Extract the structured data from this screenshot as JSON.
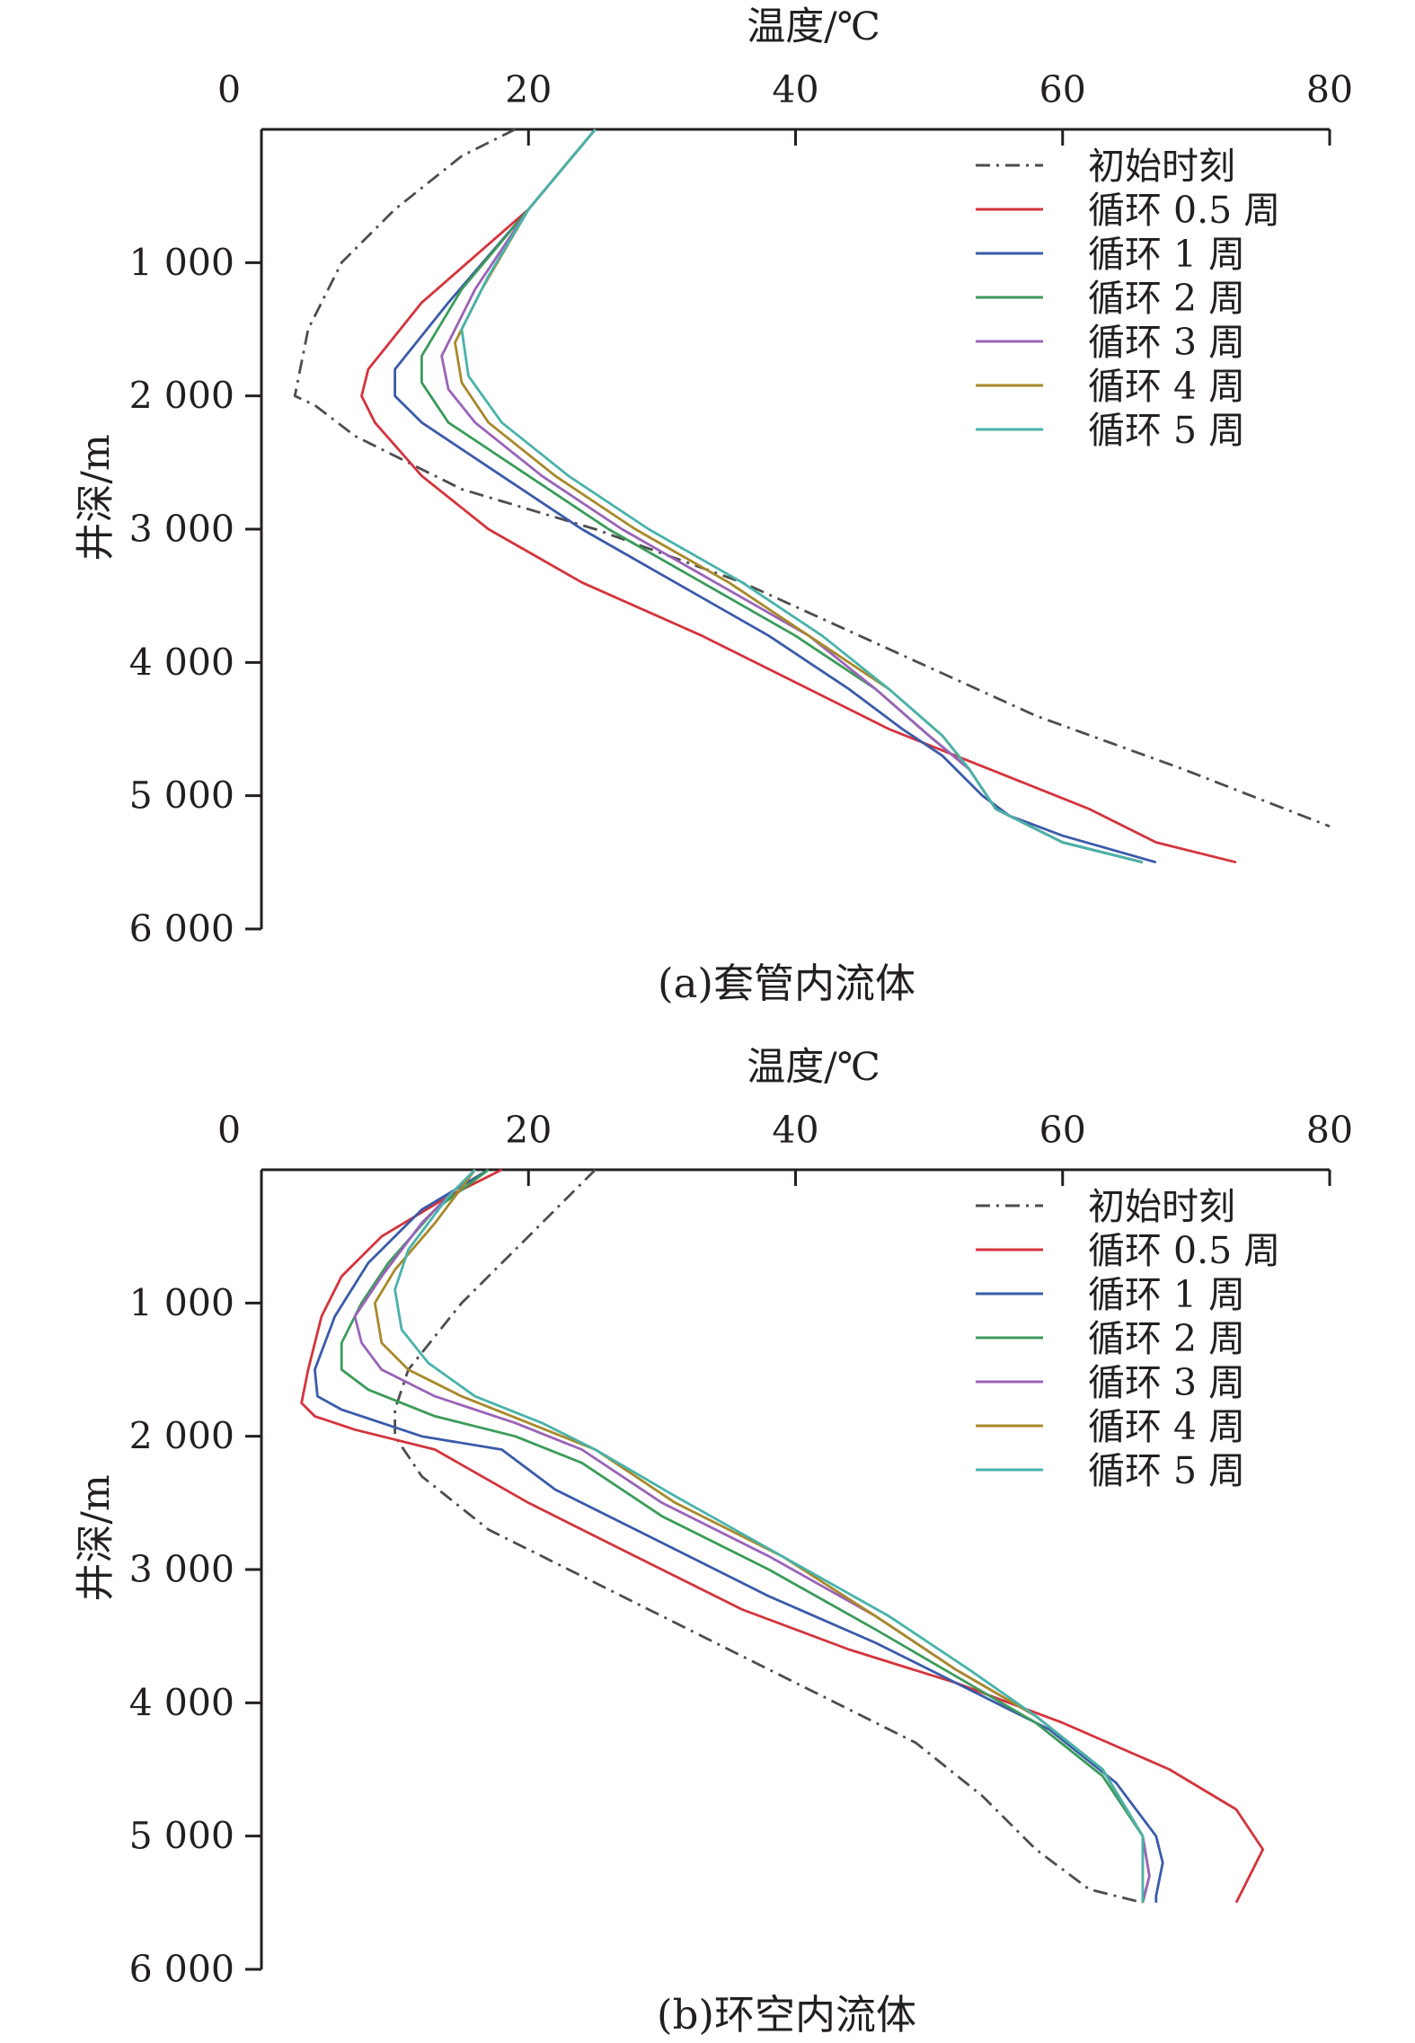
{
  "chart_data": [
    {
      "type": "line",
      "caption": "(a)套管内流体",
      "xlabel": "温度/℃",
      "ylabel": "井深/m",
      "xlim": [
        0,
        80
      ],
      "ylim": [
        6000,
        0
      ],
      "x_ticks": [
        "0",
        "20",
        "40",
        "60",
        "80"
      ],
      "y_ticks": [
        "1 000",
        "2 000",
        "3 000",
        "4 000",
        "5 000",
        "6 000"
      ],
      "legend_position": "top-right",
      "series": [
        {
          "name": "初始时刻",
          "color": "#4d4d4d",
          "dash": "dashdot",
          "points": [
            [
              19,
              0
            ],
            [
              15,
              200
            ],
            [
              10,
              600
            ],
            [
              6,
              1000
            ],
            [
              3.5,
              1500
            ],
            [
              2.5,
              2000
            ],
            [
              4,
              2070
            ],
            [
              7,
              2300
            ],
            [
              15,
              2700
            ],
            [
              25,
              3000
            ],
            [
              36,
              3400
            ],
            [
              47,
              3900
            ],
            [
              58,
              4400
            ],
            [
              69,
              4800
            ],
            [
              80,
              5230
            ]
          ]
        },
        {
          "name": "循环 0.5 周",
          "color": "#d4343c",
          "dash": "solid",
          "points": [
            [
              25,
              0
            ],
            [
              20,
              600
            ],
            [
              12,
              1300
            ],
            [
              8,
              1800
            ],
            [
              7.5,
              2000
            ],
            [
              8.5,
              2200
            ],
            [
              12,
              2600
            ],
            [
              17,
              3000
            ],
            [
              24,
              3400
            ],
            [
              33,
              3800
            ],
            [
              41,
              4200
            ],
            [
              47,
              4500
            ],
            [
              52,
              4700
            ],
            [
              57,
              4900
            ],
            [
              62,
              5100
            ],
            [
              67,
              5350
            ],
            [
              73,
              5500
            ]
          ]
        },
        {
          "name": "循环 1 周",
          "color": "#3a5ba9",
          "dash": "solid",
          "points": [
            [
              25,
              0
            ],
            [
              20,
              600
            ],
            [
              14,
              1300
            ],
            [
              10,
              1800
            ],
            [
              10,
              2000
            ],
            [
              12,
              2200
            ],
            [
              18,
              2600
            ],
            [
              24,
              3000
            ],
            [
              31,
              3400
            ],
            [
              38,
              3800
            ],
            [
              44,
              4200
            ],
            [
              48,
              4500
            ],
            [
              51,
              4700
            ],
            [
              54,
              5000
            ],
            [
              56,
              5150
            ],
            [
              60,
              5300
            ],
            [
              67,
              5500
            ]
          ]
        },
        {
          "name": "循环 2 周",
          "color": "#3b9b5a",
          "dash": "solid",
          "points": [
            [
              25,
              0
            ],
            [
              20,
              600
            ],
            [
              15,
              1200
            ],
            [
              12,
              1700
            ],
            [
              12,
              1900
            ],
            [
              14,
              2200
            ],
            [
              20,
              2600
            ],
            [
              26,
              3000
            ],
            [
              33,
              3400
            ],
            [
              40,
              3800
            ],
            [
              46,
              4200
            ],
            [
              50,
              4550
            ],
            [
              53,
              4800
            ],
            [
              55,
              5100
            ],
            [
              60,
              5350
            ],
            [
              66,
              5500
            ]
          ]
        },
        {
          "name": "循环 3 周",
          "color": "#9a63b8",
          "dash": "solid",
          "points": [
            [
              25,
              0
            ],
            [
              20,
              600
            ],
            [
              16,
              1200
            ],
            [
              13.5,
              1700
            ],
            [
              14,
              1950
            ],
            [
              16,
              2200
            ],
            [
              21,
              2600
            ],
            [
              27,
              3000
            ],
            [
              34,
              3400
            ],
            [
              41,
              3800
            ],
            [
              46,
              4200
            ],
            [
              50,
              4550
            ],
            [
              53,
              4800
            ],
            [
              55,
              5100
            ],
            [
              60,
              5350
            ],
            [
              66,
              5500
            ]
          ]
        },
        {
          "name": "循环 4 周",
          "color": "#a8892a",
          "dash": "solid",
          "points": [
            [
              25,
              0
            ],
            [
              20,
              600
            ],
            [
              16.5,
              1200
            ],
            [
              14.5,
              1600
            ],
            [
              15,
              1900
            ],
            [
              17,
              2200
            ],
            [
              22,
              2600
            ],
            [
              28,
              3000
            ],
            [
              35,
              3400
            ],
            [
              41,
              3800
            ],
            [
              47,
              4200
            ],
            [
              51,
              4550
            ],
            [
              53,
              4800
            ],
            [
              55,
              5100
            ],
            [
              60,
              5350
            ],
            [
              66,
              5500
            ]
          ]
        },
        {
          "name": "循环 5 周",
          "color": "#48b3ab",
          "dash": "solid",
          "points": [
            [
              25,
              0
            ],
            [
              20,
              600
            ],
            [
              17,
              1100
            ],
            [
              15,
              1500
            ],
            [
              15.5,
              1850
            ],
            [
              18,
              2200
            ],
            [
              23,
              2600
            ],
            [
              29,
              3000
            ],
            [
              36,
              3400
            ],
            [
              42,
              3800
            ],
            [
              47,
              4200
            ],
            [
              51,
              4550
            ],
            [
              53,
              4800
            ],
            [
              55,
              5100
            ],
            [
              60,
              5350
            ],
            [
              66,
              5500
            ]
          ]
        }
      ]
    },
    {
      "type": "line",
      "caption": "(b)环空内流体",
      "xlabel": "温度/℃",
      "ylabel": "井深/m",
      "xlim": [
        0,
        80
      ],
      "ylim": [
        6000,
        0
      ],
      "x_ticks": [
        "0",
        "20",
        "40",
        "60",
        "80"
      ],
      "y_ticks": [
        "1 000",
        "2 000",
        "3 000",
        "4 000",
        "5 000",
        "6 000"
      ],
      "legend_position": "top-right",
      "series": [
        {
          "name": "初始时刻",
          "color": "#4d4d4d",
          "dash": "dashdot",
          "points": [
            [
              25,
              0
            ],
            [
              20,
              500
            ],
            [
              15,
              1000
            ],
            [
              11,
              1500
            ],
            [
              10,
              1800
            ],
            [
              10,
              2000
            ],
            [
              12,
              2300
            ],
            [
              17,
              2700
            ],
            [
              25,
              3100
            ],
            [
              33,
              3500
            ],
            [
              41,
              3900
            ],
            [
              49,
              4300
            ],
            [
              54,
              4700
            ],
            [
              58,
              5100
            ],
            [
              62,
              5400
            ],
            [
              66,
              5500
            ]
          ]
        },
        {
          "name": "循环 0.5 周",
          "color": "#d4343c",
          "dash": "solid",
          "points": [
            [
              18,
              0
            ],
            [
              14,
              200
            ],
            [
              9,
              500
            ],
            [
              6,
              800
            ],
            [
              4.5,
              1100
            ],
            [
              3.5,
              1500
            ],
            [
              3,
              1750
            ],
            [
              4,
              1850
            ],
            [
              7,
              1950
            ],
            [
              9,
              2000
            ],
            [
              13,
              2100
            ],
            [
              20,
              2500
            ],
            [
              28,
              2900
            ],
            [
              36,
              3300
            ],
            [
              44,
              3600
            ],
            [
              52,
              3850
            ],
            [
              60,
              4150
            ],
            [
              68,
              4500
            ],
            [
              73,
              4800
            ],
            [
              75,
              5100
            ],
            [
              74,
              5300
            ],
            [
              73,
              5500
            ]
          ]
        },
        {
          "name": "循环 1 周",
          "color": "#3a5ba9",
          "dash": "solid",
          "points": [
            [
              17,
              0
            ],
            [
              12,
              300
            ],
            [
              8,
              700
            ],
            [
              5.5,
              1100
            ],
            [
              4,
              1500
            ],
            [
              4.2,
              1700
            ],
            [
              6,
              1800
            ],
            [
              9,
              1900
            ],
            [
              12,
              2000
            ],
            [
              18,
              2100
            ],
            [
              22,
              2400
            ],
            [
              30,
              2800
            ],
            [
              38,
              3200
            ],
            [
              46,
              3550
            ],
            [
              53,
              3900
            ],
            [
              59,
              4200
            ],
            [
              64,
              4600
            ],
            [
              67,
              5000
            ],
            [
              67.5,
              5200
            ],
            [
              67,
              5450
            ],
            [
              67,
              5500
            ]
          ]
        },
        {
          "name": "循环 2 周",
          "color": "#3b9b5a",
          "dash": "solid",
          "points": [
            [
              17,
              0
            ],
            [
              13,
              300
            ],
            [
              9.5,
              700
            ],
            [
              7.5,
              1000
            ],
            [
              6,
              1300
            ],
            [
              6,
              1500
            ],
            [
              8,
              1650
            ],
            [
              13,
              1850
            ],
            [
              19,
              2000
            ],
            [
              24,
              2200
            ],
            [
              30,
              2600
            ],
            [
              38,
              3000
            ],
            [
              46,
              3450
            ],
            [
              52,
              3800
            ],
            [
              58,
              4150
            ],
            [
              63,
              4550
            ],
            [
              66,
              5000
            ],
            [
              66.5,
              5300
            ],
            [
              66,
              5500
            ]
          ]
        },
        {
          "name": "循环 3 周",
          "color": "#9a63b8",
          "dash": "solid",
          "points": [
            [
              16,
              0
            ],
            [
              12,
              400
            ],
            [
              9,
              800
            ],
            [
              7,
              1100
            ],
            [
              7.5,
              1300
            ],
            [
              9,
              1500
            ],
            [
              13,
              1700
            ],
            [
              19,
              1900
            ],
            [
              24,
              2100
            ],
            [
              30,
              2500
            ],
            [
              38,
              2900
            ],
            [
              46,
              3350
            ],
            [
              52,
              3750
            ],
            [
              58,
              4100
            ],
            [
              63,
              4500
            ],
            [
              66,
              5000
            ],
            [
              66.5,
              5300
            ],
            [
              66,
              5500
            ]
          ]
        },
        {
          "name": "循环 4 周",
          "color": "#a8892a",
          "dash": "solid",
          "points": [
            [
              16,
              0
            ],
            [
              13,
              400
            ],
            [
              10,
              750
            ],
            [
              8.5,
              1000
            ],
            [
              9,
              1300
            ],
            [
              11,
              1500
            ],
            [
              15,
              1700
            ],
            [
              20,
              1900
            ],
            [
              25,
              2100
            ],
            [
              31,
              2500
            ],
            [
              39,
              2900
            ],
            [
              46,
              3350
            ],
            [
              52,
              3750
            ],
            [
              58,
              4100
            ],
            [
              63,
              4500
            ],
            [
              66,
              5000
            ],
            [
              66,
              5300
            ],
            [
              66,
              5500
            ]
          ]
        },
        {
          "name": "循环 5 周",
          "color": "#48b3ab",
          "dash": "solid",
          "points": [
            [
              16,
              0
            ],
            [
              14,
              200
            ],
            [
              11,
              600
            ],
            [
              10,
              900
            ],
            [
              10.5,
              1200
            ],
            [
              12.5,
              1450
            ],
            [
              16,
              1700
            ],
            [
              21,
              1900
            ],
            [
              25,
              2100
            ],
            [
              31,
              2450
            ],
            [
              39,
              2900
            ],
            [
              47,
              3350
            ],
            [
              53,
              3750
            ],
            [
              58,
              4100
            ],
            [
              63,
              4500
            ],
            [
              66,
              5000
            ],
            [
              66,
              5300
            ],
            [
              66,
              5500
            ]
          ]
        }
      ]
    }
  ]
}
